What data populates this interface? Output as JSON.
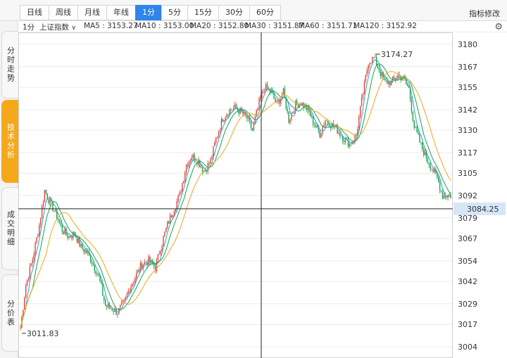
{
  "toolbar": {
    "tabs": [
      {
        "label": "日线",
        "active": false
      },
      {
        "label": "周线",
        "active": false
      },
      {
        "label": "月线",
        "active": false
      },
      {
        "label": "年线",
        "active": false
      },
      {
        "label": "1分",
        "active": true
      },
      {
        "label": "5分",
        "active": false
      },
      {
        "label": "15分",
        "active": false
      },
      {
        "label": "30分",
        "active": false
      },
      {
        "label": "60分",
        "active": false
      }
    ],
    "edit_label": "指标修改"
  },
  "side_tabs": [
    {
      "label": "分时走势",
      "active": false
    },
    {
      "label": "技术分析",
      "active": true
    },
    {
      "label": "成交明细",
      "active": false
    },
    {
      "label": "分价表",
      "active": false
    }
  ],
  "info": {
    "period": "1分",
    "index_name": "上证指数",
    "ma": [
      {
        "label": "MA5 : 3153.27",
        "color": "#222222"
      },
      {
        "label": "MA10 : 3153.00",
        "color": "#f2a61a"
      },
      {
        "label": "MA20 : 3152.80",
        "color": "#e040e0"
      },
      {
        "label": "MA30 : 3151.87",
        "color": "#1aa34a"
      },
      {
        "label": "MA60 : 3151.71",
        "color": "#2b9fd9"
      },
      {
        "label": "MA120 : 3152.92",
        "color": "#f2a61a"
      }
    ]
  },
  "chart_data": {
    "type": "candlestick",
    "y_ticks": [
      "3180",
      "3167",
      "3155",
      "3142",
      "3130",
      "3117",
      "3105",
      "3092",
      "3079",
      "3067",
      "3054",
      "3042",
      "3029",
      "3017",
      "3004"
    ],
    "ylim": [
      3000,
      3183
    ],
    "colors": {
      "up": "#e8413a",
      "down": "#19a34a",
      "ma5": "#2b9fd9",
      "ma10": "#f2a61a",
      "ma20": "#1aa34a",
      "crosshair": "#222222",
      "current_label_bg": "#d6e6f7"
    },
    "crosshair_price": "3084.25",
    "crosshair_value": 3084.25,
    "high_label": "3174.27",
    "high_value": 3174.27,
    "low_label": "3011.83",
    "low_value": 3011.83,
    "price_path": [
      [
        0,
        3015
      ],
      [
        4,
        3040
      ],
      [
        9,
        3055
      ],
      [
        14,
        3075
      ],
      [
        18,
        3095
      ],
      [
        22,
        3088
      ],
      [
        27,
        3080
      ],
      [
        31,
        3072
      ],
      [
        36,
        3068
      ],
      [
        40,
        3070
      ],
      [
        45,
        3062
      ],
      [
        50,
        3058
      ],
      [
        54,
        3052
      ],
      [
        58,
        3045
      ],
      [
        63,
        3028
      ],
      [
        68,
        3026
      ],
      [
        72,
        3024
      ],
      [
        77,
        3030
      ],
      [
        82,
        3040
      ],
      [
        86,
        3046
      ],
      [
        90,
        3052
      ],
      [
        95,
        3054
      ],
      [
        100,
        3050
      ],
      [
        104,
        3062
      ],
      [
        109,
        3075
      ],
      [
        114,
        3085
      ],
      [
        118,
        3092
      ],
      [
        123,
        3110
      ],
      [
        127,
        3115
      ],
      [
        132,
        3112
      ],
      [
        136,
        3106
      ],
      [
        141,
        3112
      ],
      [
        145,
        3125
      ],
      [
        150,
        3137
      ],
      [
        154,
        3141
      ],
      [
        159,
        3143
      ],
      [
        163,
        3141
      ],
      [
        168,
        3137
      ],
      [
        172,
        3130
      ],
      [
        177,
        3146
      ],
      [
        181,
        3155
      ],
      [
        186,
        3152
      ],
      [
        190,
        3145
      ],
      [
        195,
        3152
      ],
      [
        199,
        3136
      ],
      [
        204,
        3145
      ],
      [
        208,
        3146
      ],
      [
        213,
        3142
      ],
      [
        217,
        3135
      ],
      [
        222,
        3128
      ],
      [
        226,
        3136
      ],
      [
        231,
        3133
      ],
      [
        235,
        3130
      ],
      [
        240,
        3125
      ],
      [
        244,
        3122
      ],
      [
        249,
        3127
      ],
      [
        253,
        3147
      ],
      [
        258,
        3170
      ],
      [
        262,
        3172
      ],
      [
        266,
        3165
      ],
      [
        270,
        3158
      ],
      [
        275,
        3158
      ],
      [
        280,
        3162
      ],
      [
        284,
        3160
      ],
      [
        288,
        3154
      ],
      [
        292,
        3132
      ],
      [
        297,
        3121
      ],
      [
        301,
        3114
      ],
      [
        305,
        3108
      ],
      [
        309,
        3102
      ],
      [
        313,
        3092
      ]
    ]
  }
}
